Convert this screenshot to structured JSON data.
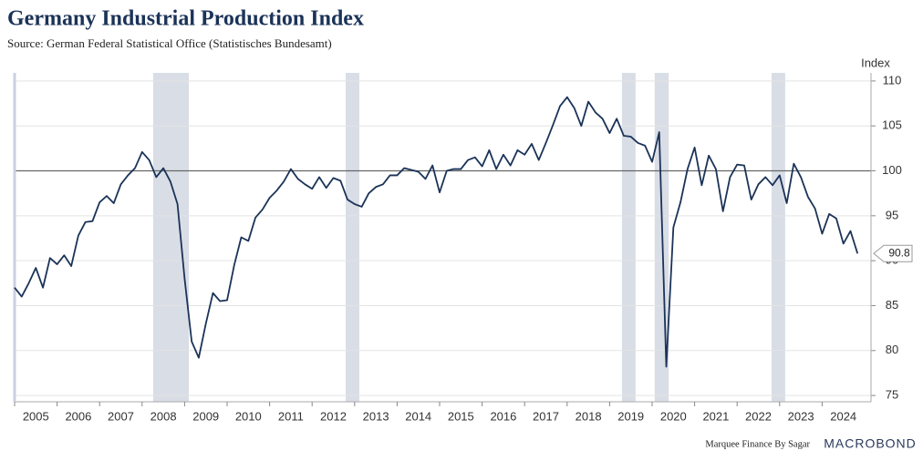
{
  "chart_data": {
    "type": "line",
    "title": "Germany Industrial Production Index",
    "subtitle": "Source: German Federal Statistical Office (Statistisches Bundesamt)",
    "y_axis_label": "Index",
    "footer": "Marquee Finance By Sagar",
    "brand": "MACROBOND",
    "color": "#1b3358",
    "x": [
      2005,
      2005.167,
      2005.333,
      2005.5,
      2005.667,
      2005.833,
      2006,
      2006.167,
      2006.333,
      2006.5,
      2006.667,
      2006.833,
      2007,
      2007.167,
      2007.333,
      2007.5,
      2007.667,
      2007.833,
      2008,
      2008.167,
      2008.333,
      2008.5,
      2008.667,
      2008.833,
      2009,
      2009.167,
      2009.333,
      2009.5,
      2009.667,
      2009.833,
      2010,
      2010.167,
      2010.333,
      2010.5,
      2010.667,
      2010.833,
      2011,
      2011.167,
      2011.333,
      2011.5,
      2011.667,
      2011.833,
      2012,
      2012.167,
      2012.333,
      2012.5,
      2012.667,
      2012.833,
      2013,
      2013.167,
      2013.333,
      2013.5,
      2013.667,
      2013.833,
      2014,
      2014.167,
      2014.333,
      2014.5,
      2014.667,
      2014.833,
      2015,
      2015.167,
      2015.333,
      2015.5,
      2015.667,
      2015.833,
      2016,
      2016.167,
      2016.333,
      2016.5,
      2016.667,
      2016.833,
      2017,
      2017.167,
      2017.333,
      2017.5,
      2017.667,
      2017.833,
      2018,
      2018.167,
      2018.333,
      2018.5,
      2018.667,
      2018.833,
      2019,
      2019.167,
      2019.333,
      2019.5,
      2019.667,
      2019.833,
      2020,
      2020.167,
      2020.333,
      2020.5,
      2020.667,
      2020.833,
      2021,
      2021.167,
      2021.333,
      2021.5,
      2021.667,
      2021.833,
      2022,
      2022.167,
      2022.333,
      2022.5,
      2022.667,
      2022.833,
      2023,
      2023.167,
      2023.333,
      2023.5,
      2023.667,
      2023.833,
      2024,
      2024.167,
      2024.333,
      2024.5,
      2024.667,
      2024.833
    ],
    "values": [
      87,
      86,
      87.5,
      89.2,
      87,
      90.3,
      89.6,
      90.6,
      89.4,
      92.8,
      94.3,
      94.4,
      96.5,
      97.2,
      96.4,
      98.5,
      99.5,
      100.3,
      102.1,
      101.2,
      99.3,
      100.3,
      98.8,
      96.3,
      88,
      81,
      79.2,
      83,
      86.4,
      85.5,
      85.6,
      89.5,
      92.6,
      92.2,
      94.8,
      95.7,
      97,
      97.8,
      98.8,
      100.2,
      99.1,
      98.5,
      98,
      99.3,
      98.1,
      99.2,
      98.9,
      96.8,
      96.3,
      96,
      97.5,
      98.2,
      98.5,
      99.5,
      99.5,
      100.3,
      100.1,
      99.9,
      99.1,
      100.6,
      97.6,
      100,
      100.2,
      100.2,
      101.2,
      101.5,
      100.5,
      102.3,
      100.2,
      101.8,
      100.6,
      102.3,
      101.8,
      103,
      101.2,
      103.1,
      105.1,
      107.2,
      108.2,
      107,
      105,
      107.7,
      106.5,
      105.8,
      104.2,
      105.8,
      103.9,
      103.8,
      103.1,
      102.8,
      101,
      104.3,
      78.2,
      93.7,
      96.5,
      100.2,
      102.6,
      98.4,
      101.7,
      100.2,
      95.5,
      99.3,
      100.7,
      100.6,
      96.8,
      98.5,
      99.3,
      98.4,
      99.5,
      96.4,
      100.8,
      99.3,
      97.1,
      95.8,
      93,
      95.2,
      94.7,
      91.9,
      93.3,
      90.8
    ],
    "shaded_ranges": [
      [
        2008.26,
        2009.1
      ],
      [
        2012.79,
        2013.11
      ],
      [
        2019.29,
        2019.61
      ],
      [
        2020.06,
        2020.39
      ],
      [
        2022.81,
        2023.13
      ]
    ],
    "reference_line": 100,
    "xlim": [
      2005,
      2025.15
    ],
    "xticks": [
      2005,
      2006,
      2007,
      2008,
      2009,
      2010,
      2011,
      2012,
      2013,
      2014,
      2015,
      2016,
      2017,
      2018,
      2019,
      2020,
      2021,
      2022,
      2023,
      2024
    ],
    "ylim": [
      74.3,
      110.9
    ],
    "yticks": [
      75,
      80,
      85,
      90,
      95,
      100,
      105,
      110
    ],
    "grid": true
  }
}
